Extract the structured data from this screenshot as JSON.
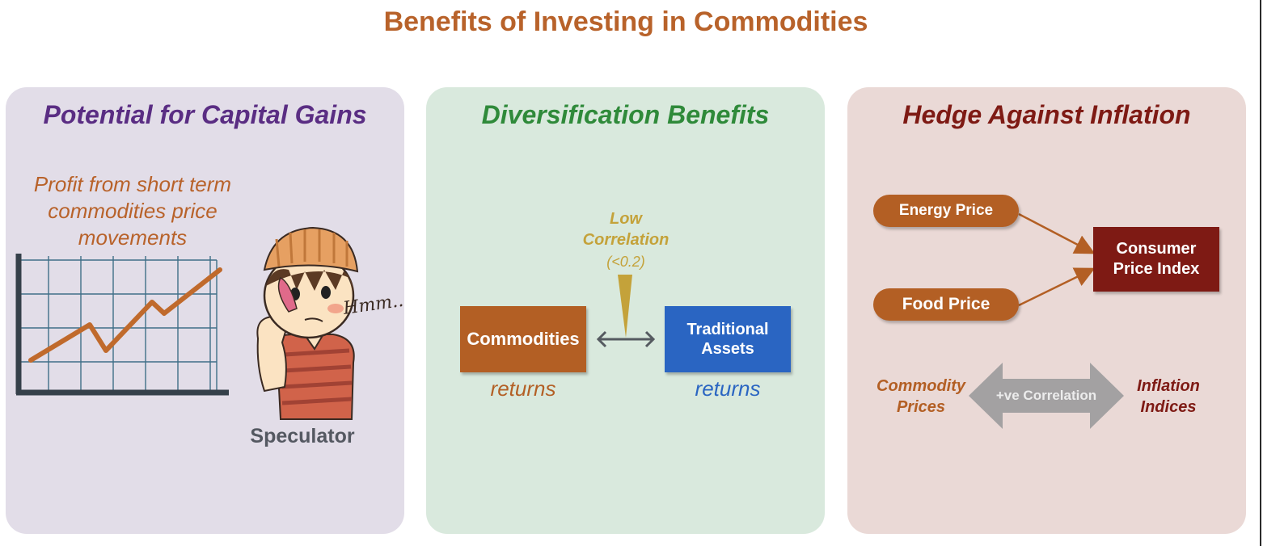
{
  "title": "Benefits of Investing in Commodities",
  "panels": {
    "capital_gains": {
      "title": "Potential for Capital Gains",
      "profit_lines": [
        "Profit from short term",
        "commodities price",
        "movements"
      ],
      "thought_text": "Hmm..",
      "speculator_label": "Speculator"
    },
    "diversification": {
      "title": "Diversification Benefits",
      "low_correlation_lines": [
        "Low",
        "Correlation"
      ],
      "correlation_value": "(<0.2)",
      "left_box": "Commodities",
      "right_box_lines": [
        "Traditional",
        "Assets"
      ],
      "left_returns": "returns",
      "right_returns": "returns"
    },
    "inflation": {
      "title": "Hedge Against Inflation",
      "energy_pill": "Energy Price",
      "food_pill": "Food Price",
      "cpi_lines": [
        "Consumer",
        "Price Index"
      ],
      "positive_correlation": "+ve Correlation",
      "left_label_lines": [
        "Commodity",
        "Prices"
      ],
      "right_label_lines": [
        "Inflation",
        "Indices"
      ]
    }
  },
  "colors": {
    "title": "#b8622a",
    "purple": "#5a2d83",
    "green": "#2f8a3a",
    "maroon": "#7e1a14",
    "orange": "#b35f24",
    "blue": "#2a65c2",
    "gold": "#c4a23a",
    "grey_arrow": "#a3a1a2"
  }
}
